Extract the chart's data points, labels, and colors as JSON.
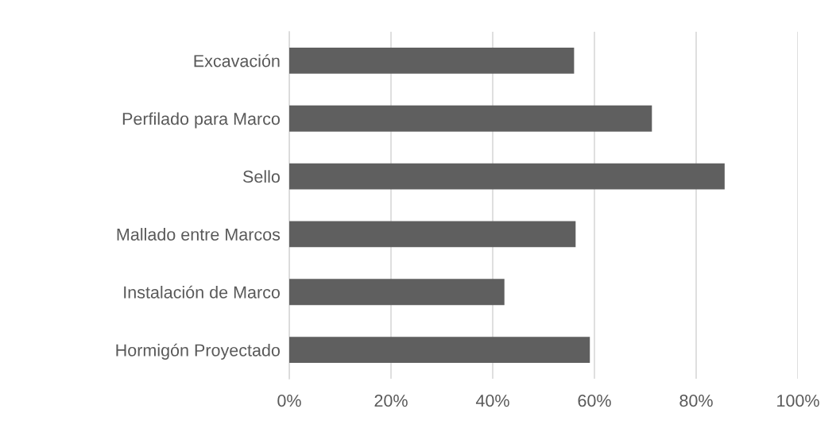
{
  "chart_data": {
    "type": "bar",
    "orientation": "horizontal",
    "categories": [
      "Excavación",
      "Perfilado para Marco",
      "Sello",
      "Mallado entre Marcos",
      "Instalación de Marco",
      "Hormigón Proyectado"
    ],
    "values": [
      56,
      71.3,
      85.6,
      56.3,
      42.3,
      59.1
    ],
    "color": "#5f5f5f",
    "xlim": [
      0,
      100
    ],
    "xticks": [
      {
        "value": 0,
        "label": "0%"
      },
      {
        "value": 20,
        "label": "20%"
      },
      {
        "value": 40,
        "label": "40%"
      },
      {
        "value": 60,
        "label": "60%"
      },
      {
        "value": 80,
        "label": "80%"
      },
      {
        "value": 100,
        "label": "100%"
      }
    ],
    "grid": "x"
  }
}
